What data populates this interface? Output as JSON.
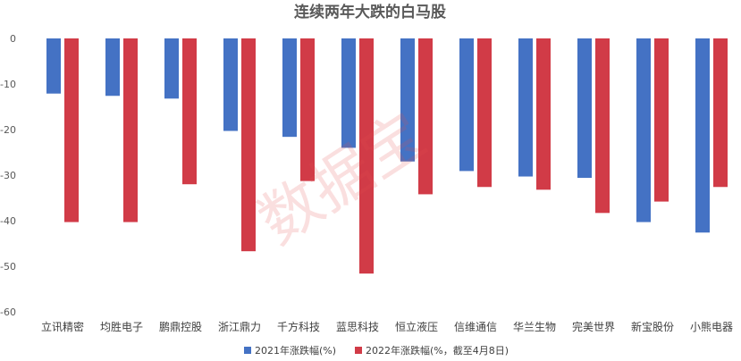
{
  "chart_data": {
    "type": "bar",
    "title": "连续两年大跌的白马股",
    "categories": [
      "立讯精密",
      "均胜电子",
      "鹏鼎控股",
      "浙江鼎力",
      "千方科技",
      "蓝思科技",
      "恒立液压",
      "信维通信",
      "华兰生物",
      "完美世界",
      "新宝股份",
      "小熊电器"
    ],
    "series": [
      {
        "name": "2021年涨跌幅(%)",
        "color": "#4472c4",
        "values": [
          -12.1,
          -12.6,
          -13.2,
          -20.3,
          -21.6,
          -24.0,
          -27.0,
          -29.1,
          -30.3,
          -30.6,
          -40.3,
          -42.6
        ]
      },
      {
        "name": "2022年涨跌幅(%，截至4月8日)",
        "color": "#d13b47",
        "values": [
          -40.3,
          -40.3,
          -32.0,
          -46.7,
          -31.3,
          -51.6,
          -34.2,
          -32.6,
          -33.2,
          -38.3,
          -35.8,
          -32.6
        ]
      }
    ],
    "ylim": [
      -60,
      0
    ],
    "yticks": [
      "0",
      "-10",
      "-20",
      "-30",
      "-40",
      "-50",
      "-60"
    ],
    "grid": false,
    "legend_position": "bottom"
  },
  "watermark": "数据宝"
}
